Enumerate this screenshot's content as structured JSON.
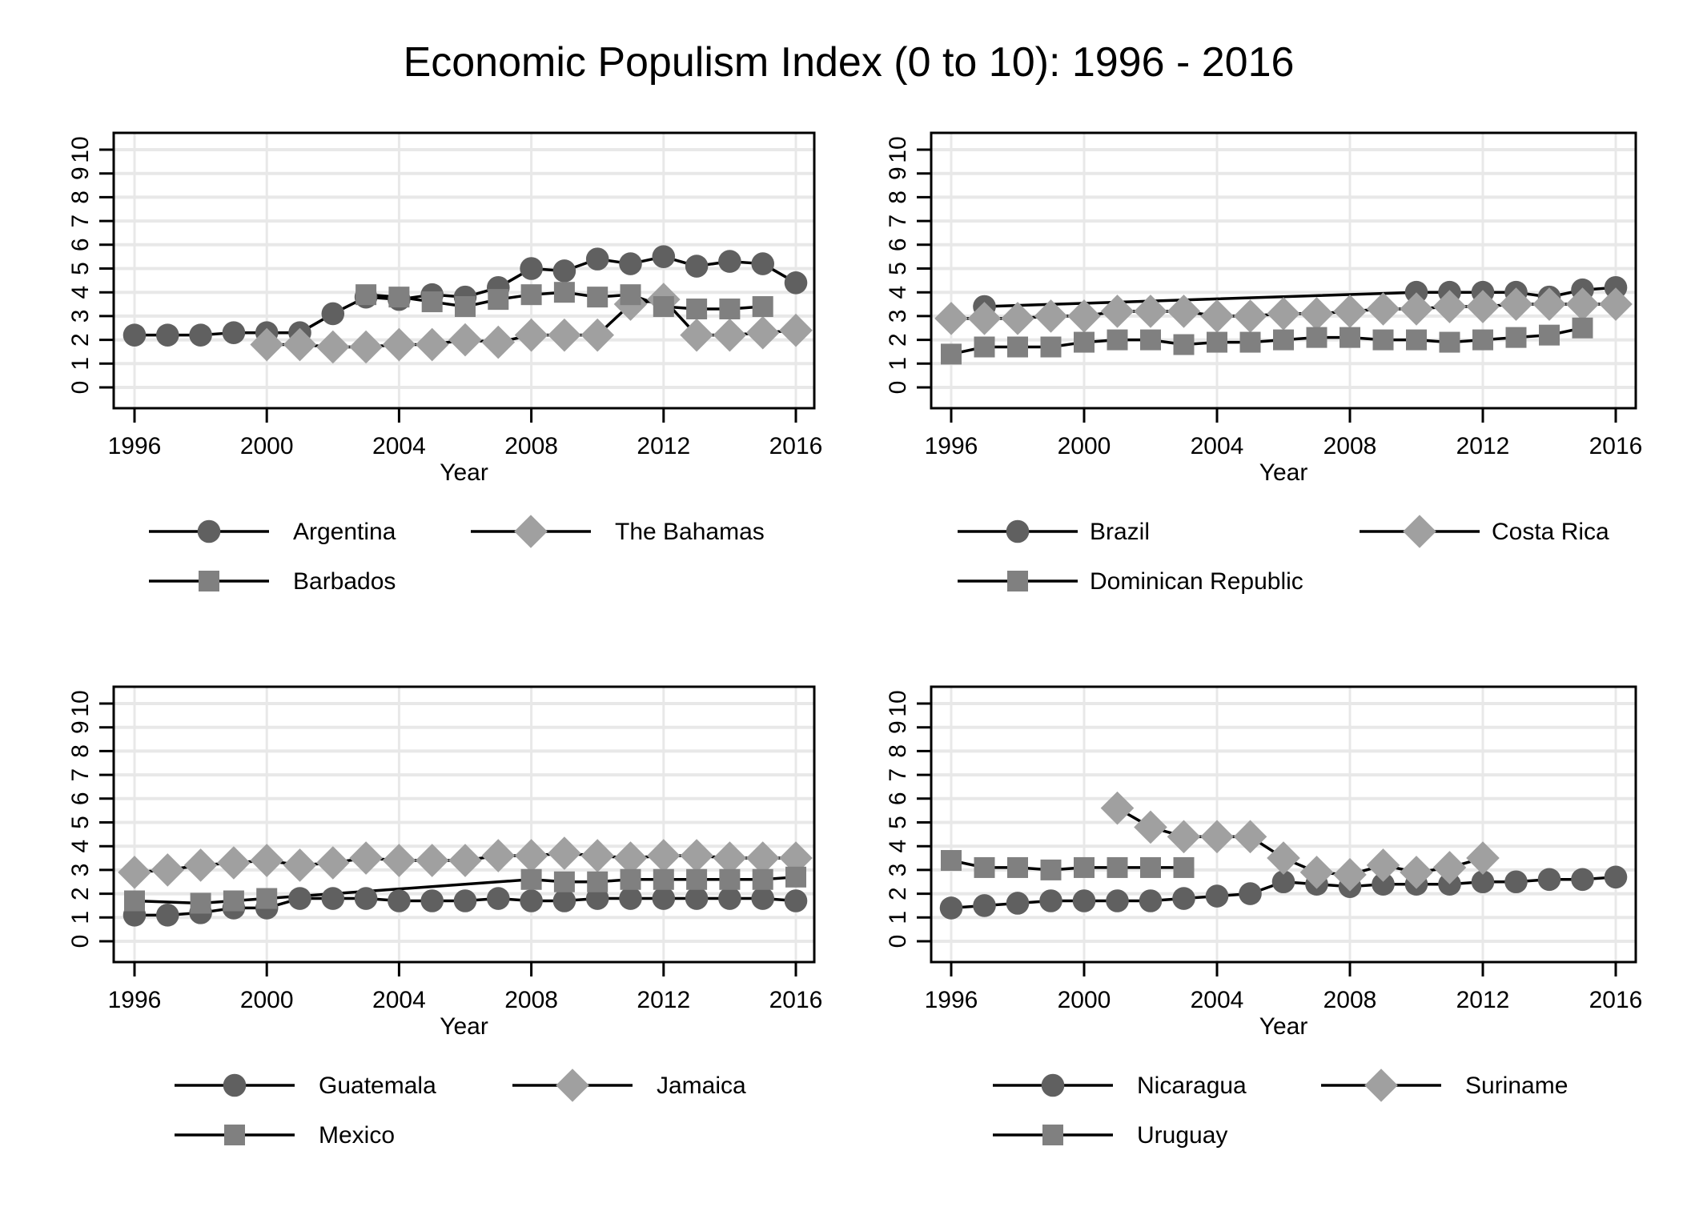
{
  "chart_data": {
    "title": "Economic Populism Index (0 to 10): 1996 - 2016",
    "colors": {
      "circle": "#606060",
      "diamond": "#a0a0a0",
      "square": "#808080",
      "line": "#000000",
      "grid": "#e8e8e8",
      "frame": "#000000"
    },
    "panels": [
      {
        "type": "line",
        "xlabel": "Year",
        "ylabel": "",
        "xlim": [
          1996,
          2016
        ],
        "ylim": [
          0,
          10
        ],
        "xticks": [
          "1996",
          "2000",
          "2004",
          "2008",
          "2012",
          "2016"
        ],
        "yticks": [
          "0",
          "1",
          "2",
          "3",
          "4",
          "5",
          "6",
          "7",
          "8",
          "9",
          "10"
        ],
        "grid": true,
        "legend_position": "bottom",
        "series": [
          {
            "name": "Argentina",
            "marker": "circle",
            "x": [
              1996,
              1997,
              1998,
              1999,
              2000,
              2001,
              2002,
              2003,
              2004,
              2005,
              2006,
              2007,
              2008,
              2009,
              2010,
              2011,
              2012,
              2013,
              2014,
              2015,
              2016
            ],
            "y": [
              2.2,
              2.2,
              2.2,
              2.3,
              2.3,
              2.3,
              3.1,
              3.8,
              3.7,
              3.9,
              3.8,
              4.2,
              5.0,
              4.9,
              5.4,
              5.2,
              5.5,
              5.1,
              5.3,
              5.2,
              4.4
            ]
          },
          {
            "name": "The Bahamas",
            "marker": "diamond",
            "x": [
              2000,
              2001,
              2002,
              2003,
              2004,
              2005,
              2006,
              2007,
              2008,
              2009,
              2010,
              2011,
              2012,
              2013,
              2014,
              2015,
              2016
            ],
            "y": [
              1.8,
              1.8,
              1.7,
              1.7,
              1.8,
              1.8,
              2.0,
              1.9,
              2.2,
              2.2,
              2.2,
              3.5,
              3.7,
              2.2,
              2.2,
              2.3,
              2.4
            ]
          },
          {
            "name": "Barbados",
            "marker": "square",
            "x": [
              2003,
              2004,
              2005,
              2006,
              2007,
              2008,
              2009,
              2010,
              2011,
              2012,
              2013,
              2014,
              2015
            ],
            "y": [
              3.9,
              3.8,
              3.6,
              3.4,
              3.7,
              3.9,
              4.0,
              3.8,
              3.9,
              3.4,
              3.3,
              3.3,
              3.4
            ]
          }
        ]
      },
      {
        "type": "line",
        "xlabel": "Year",
        "ylabel": "",
        "xlim": [
          1996,
          2016
        ],
        "ylim": [
          0,
          10
        ],
        "xticks": [
          "1996",
          "2000",
          "2004",
          "2008",
          "2012",
          "2016"
        ],
        "yticks": [
          "0",
          "1",
          "2",
          "3",
          "4",
          "5",
          "6",
          "7",
          "8",
          "9",
          "10"
        ],
        "grid": true,
        "legend_position": "bottom",
        "series": [
          {
            "name": "Brazil",
            "marker": "circle",
            "x": [
              1997,
              2010,
              2011,
              2012,
              2013,
              2014,
              2015,
              2016
            ],
            "y": [
              3.4,
              4.0,
              4.0,
              4.0,
              4.0,
              3.8,
              4.1,
              4.2
            ]
          },
          {
            "name": "Costa Rica",
            "marker": "diamond",
            "x": [
              1996,
              1997,
              1998,
              1999,
              2000,
              2001,
              2002,
              2003,
              2004,
              2005,
              2006,
              2007,
              2008,
              2009,
              2010,
              2011,
              2012,
              2013,
              2014,
              2015,
              2016
            ],
            "y": [
              2.9,
              2.9,
              2.9,
              3.0,
              3.0,
              3.2,
              3.2,
              3.2,
              3.0,
              3.0,
              3.1,
              3.1,
              3.2,
              3.3,
              3.3,
              3.4,
              3.4,
              3.5,
              3.5,
              3.5,
              3.5
            ]
          },
          {
            "name": "Dominican Republic",
            "marker": "square",
            "x": [
              1996,
              1997,
              1998,
              1999,
              2000,
              2001,
              2002,
              2003,
              2004,
              2005,
              2006,
              2007,
              2008,
              2009,
              2010,
              2011,
              2012,
              2013,
              2014,
              2015
            ],
            "y": [
              1.4,
              1.7,
              1.7,
              1.7,
              1.9,
              2.0,
              2.0,
              1.8,
              1.9,
              1.9,
              2.0,
              2.1,
              2.1,
              2.0,
              2.0,
              1.9,
              2.0,
              2.1,
              2.2,
              2.5
            ]
          }
        ]
      },
      {
        "type": "line",
        "xlabel": "Year",
        "ylabel": "",
        "xlim": [
          1996,
          2016
        ],
        "ylim": [
          0,
          10
        ],
        "xticks": [
          "1996",
          "2000",
          "2004",
          "2008",
          "2012",
          "2016"
        ],
        "yticks": [
          "0",
          "1",
          "2",
          "3",
          "4",
          "5",
          "6",
          "7",
          "8",
          "9",
          "10"
        ],
        "grid": true,
        "legend_position": "bottom",
        "series": [
          {
            "name": "Guatemala",
            "marker": "circle",
            "x": [
              1996,
              1997,
              1998,
              1999,
              2000,
              2001,
              2002,
              2003,
              2004,
              2005,
              2006,
              2007,
              2008,
              2009,
              2010,
              2011,
              2012,
              2013,
              2014,
              2015,
              2016
            ],
            "y": [
              1.1,
              1.1,
              1.2,
              1.4,
              1.4,
              1.8,
              1.8,
              1.8,
              1.7,
              1.7,
              1.7,
              1.8,
              1.7,
              1.7,
              1.8,
              1.8,
              1.8,
              1.8,
              1.8,
              1.8,
              1.7
            ]
          },
          {
            "name": "Jamaica",
            "marker": "diamond",
            "x": [
              1996,
              1997,
              1998,
              1999,
              2000,
              2001,
              2002,
              2003,
              2004,
              2005,
              2006,
              2007,
              2008,
              2009,
              2010,
              2011,
              2012,
              2013,
              2014,
              2015,
              2016
            ],
            "y": [
              2.9,
              3.0,
              3.2,
              3.3,
              3.4,
              3.2,
              3.3,
              3.5,
              3.4,
              3.4,
              3.4,
              3.6,
              3.6,
              3.7,
              3.6,
              3.5,
              3.6,
              3.6,
              3.5,
              3.5,
              3.5
            ]
          },
          {
            "name": "Mexico",
            "marker": "square",
            "x": [
              1996,
              1998,
              1999,
              2000,
              2008,
              2009,
              2010,
              2011,
              2012,
              2013,
              2014,
              2015,
              2016
            ],
            "y": [
              1.7,
              1.6,
              1.7,
              1.8,
              2.6,
              2.5,
              2.5,
              2.6,
              2.6,
              2.6,
              2.6,
              2.6,
              2.7
            ]
          }
        ]
      },
      {
        "type": "line",
        "xlabel": "Year",
        "ylabel": "",
        "xlim": [
          1996,
          2016
        ],
        "ylim": [
          0,
          10
        ],
        "xticks": [
          "1996",
          "2000",
          "2004",
          "2008",
          "2012",
          "2016"
        ],
        "yticks": [
          "0",
          "1",
          "2",
          "3",
          "4",
          "5",
          "6",
          "7",
          "8",
          "9",
          "10"
        ],
        "grid": true,
        "legend_position": "bottom",
        "series": [
          {
            "name": "Nicaragua",
            "marker": "circle",
            "x": [
              1996,
              1997,
              1998,
              1999,
              2000,
              2001,
              2002,
              2003,
              2004,
              2005,
              2006,
              2007,
              2008,
              2009,
              2010,
              2011,
              2012,
              2013,
              2014,
              2015,
              2016
            ],
            "y": [
              1.4,
              1.5,
              1.6,
              1.7,
              1.7,
              1.7,
              1.7,
              1.8,
              1.9,
              2.0,
              2.5,
              2.4,
              2.3,
              2.4,
              2.4,
              2.4,
              2.5,
              2.5,
              2.6,
              2.6,
              2.7
            ]
          },
          {
            "name": "Suriname",
            "marker": "diamond",
            "x": [
              2001,
              2002,
              2003,
              2004,
              2005,
              2006,
              2007,
              2008,
              2009,
              2010,
              2011,
              2012
            ],
            "y": [
              5.6,
              4.8,
              4.4,
              4.4,
              4.4,
              3.5,
              2.9,
              2.8,
              3.2,
              2.9,
              3.1,
              3.5
            ]
          },
          {
            "name": "Uruguay",
            "marker": "square",
            "x": [
              1996,
              1997,
              1998,
              1999,
              2000,
              2001,
              2002,
              2003
            ],
            "y": [
              3.4,
              3.1,
              3.1,
              3.0,
              3.1,
              3.1,
              3.1,
              3.1
            ]
          }
        ]
      }
    ]
  }
}
